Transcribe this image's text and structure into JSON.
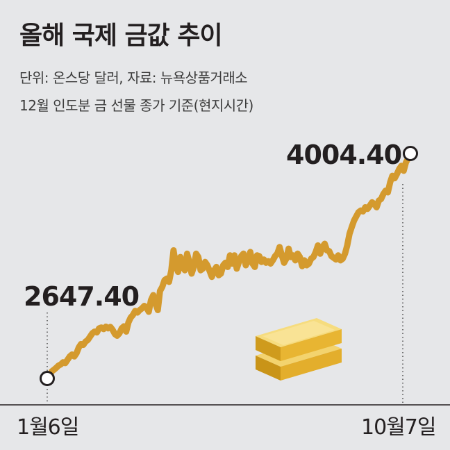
{
  "title": "올해 국제 금값 추이",
  "subtitle_unit": "단위: 온스당 달러, 자료: 뉴욕상품거래소",
  "subtitle_basis": "12월 인도분 금 선물 종가 기준(현지시간)",
  "colors": {
    "line": "#d49a2e",
    "background": "#e6e7e9",
    "text": "#231f20"
  },
  "icons": {
    "decoration": "gold-bars-icon"
  },
  "chart_data": {
    "type": "line",
    "title": "올해 국제 금값 추이",
    "ylabel": "온스당 달러",
    "x_start_label": "1월6일",
    "x_end_label": "10월7일",
    "ylim": [
      2600,
      4050
    ],
    "start": {
      "label": "1월6일",
      "value": 2647.4,
      "value_label": "2647.40"
    },
    "end": {
      "label": "10월7일",
      "value": 4004.4,
      "value_label": "4004.40"
    },
    "values": [
      2647.4,
      2660,
      2690,
      2700,
      2712,
      2725,
      2732,
      2745,
      2740,
      2760,
      2780,
      2792,
      2780,
      2800,
      2835,
      2855,
      2850,
      2870,
      2880,
      2900,
      2920,
      2930,
      2925,
      2950,
      2955,
      2945,
      2960,
      2950,
      2958,
      2940,
      2915,
      2905,
      2920,
      2950,
      2962,
      2930,
      2985,
      3015,
      3030,
      3055,
      3045,
      3060,
      3070,
      3085,
      3075,
      3050,
      3120,
      3150,
      3100,
      3060,
      3175,
      3200,
      3240,
      3250,
      3230,
      3300,
      3420,
      3330,
      3290,
      3380,
      3320,
      3300,
      3400,
      3350,
      3280,
      3320,
      3400,
      3380,
      3300,
      3310,
      3350,
      3330,
      3295,
      3260,
      3300,
      3320,
      3270,
      3280,
      3330,
      3345,
      3320,
      3390,
      3340,
      3390,
      3310,
      3350,
      3385,
      3400,
      3330,
      3360,
      3410,
      3340,
      3320,
      3390,
      3385,
      3350,
      3365,
      3345,
      3355,
      3340,
      3360,
      3385,
      3400,
      3440,
      3390,
      3345,
      3370,
      3430,
      3380,
      3390,
      3360,
      3400,
      3380,
      3325,
      3360,
      3330,
      3340,
      3370,
      3380,
      3410,
      3450,
      3400,
      3440,
      3460,
      3420,
      3415,
      3385,
      3375,
      3365,
      3390,
      3360,
      3370,
      3400,
      3450,
      3520,
      3560,
      3600,
      3625,
      3650,
      3660,
      3655,
      3680,
      3670,
      3690,
      3710,
      3700,
      3680,
      3720,
      3730,
      3760,
      3780,
      3770,
      3830,
      3870,
      3855,
      3880,
      3910,
      3930,
      3900,
      3950,
      3975,
      4004.4
    ],
    "grid": false,
    "legend": "none"
  }
}
